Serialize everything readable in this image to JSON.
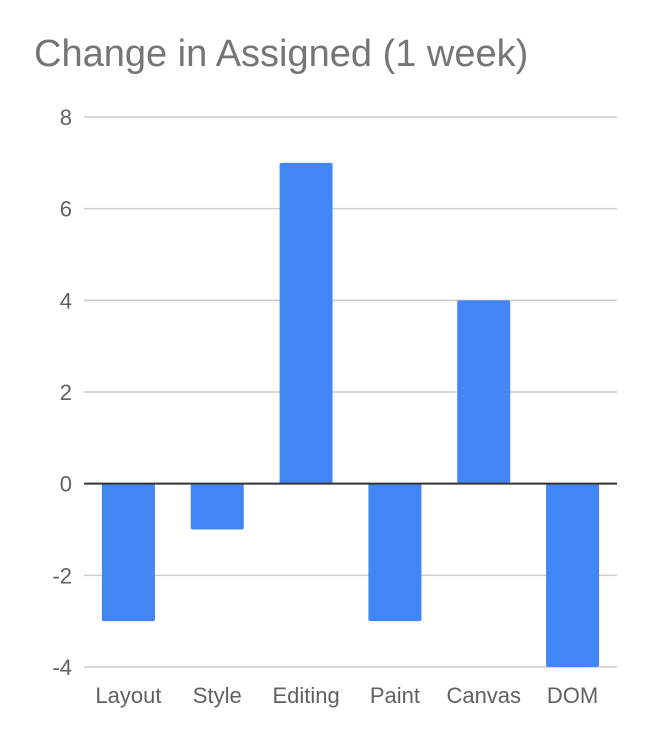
{
  "colors": {
    "bar": "#4285f4",
    "grid": "#cccccc",
    "zero_line": "#333333",
    "title": "#757575",
    "tick_text": "#616161"
  },
  "chart_data": {
    "type": "bar",
    "title": "Change in Assigned (1 week)",
    "xlabel": "",
    "ylabel": "",
    "categories": [
      "Layout",
      "Style",
      "Editing",
      "Paint",
      "Canvas",
      "DOM"
    ],
    "values": [
      -3,
      -1,
      7,
      -3,
      4,
      -4
    ],
    "ylim": [
      -4,
      8
    ],
    "yticks": [
      8,
      6,
      4,
      2,
      0,
      -2,
      -4
    ],
    "ytick_labels": [
      "8",
      "6",
      "4",
      "2",
      "0",
      "-2",
      "-4"
    ],
    "grid": true,
    "legend": "none"
  }
}
